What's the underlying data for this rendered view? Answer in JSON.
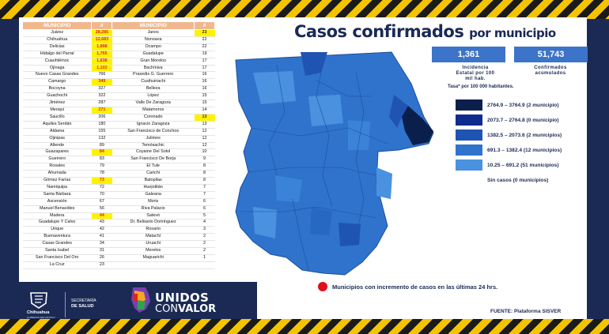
{
  "title": {
    "main": "Casos confirmados",
    "tail": "por municipio"
  },
  "incidence": {
    "value": "1,361",
    "label_1": "Incidencia",
    "label_2": "Estatal por 100",
    "label_3": "mil hab.",
    "note": "Tasa* por 100 000 habitantes."
  },
  "confirmed": {
    "value": "51,743",
    "label_1": "Confirmados",
    "label_2": "acumulados"
  },
  "legend": [
    {
      "label": "2764.9 – 3764.9 (2 municipio)",
      "color": "#0b1f4d"
    },
    {
      "label": "2073.7 – 2764.8 (0 municipio)",
      "color": "#0d2c8e"
    },
    {
      "label": "1382.5 – 2073.6 (2 municipios)",
      "color": "#1f54b3"
    },
    {
      "label": "691.3 – 1382.4 (12 municipios)",
      "color": "#2f73cc"
    },
    {
      "label": "10.25 – 691.2 (51 municipios)",
      "color": "#4a91e0"
    },
    {
      "label": "Sin casos (0 municipios)",
      "color": "#ffffff"
    }
  ],
  "increment_note": "Municipios con incremento de casos en las últimas 24 hrs.",
  "source": "FUENTE: Plataforma SISVER",
  "table": {
    "headers": [
      "MUNICIPIO",
      "#",
      "MUNICIPIO",
      "#"
    ],
    "rows": [
      [
        "Juárez",
        "28,285",
        "Janos",
        "23"
      ],
      [
        "Chihuahua",
        "12,683",
        "Nonoava",
        "22"
      ],
      [
        "Delicias",
        "1,898",
        "Ocampo",
        "22"
      ],
      [
        "Hidalgo del Parral",
        "1,765",
        "Guadalupe",
        "19"
      ],
      [
        "Cuauhtémoc",
        "1,638",
        "Gran Morelos",
        "17"
      ],
      [
        "Ojinaga",
        "1,102",
        "Bachíniva",
        "17"
      ],
      [
        "Nuevo Casas Grandes",
        "766",
        "Praxedis G. Guerrero",
        "16"
      ],
      [
        "Camargo",
        "349",
        "Cusihuiriachi",
        "16"
      ],
      [
        "Bocoyna",
        "327",
        "Belleza",
        "16"
      ],
      [
        "Guachochi",
        "322",
        "López",
        "15"
      ],
      [
        "Jiménez",
        "287",
        "Valle De Zaragoza",
        "15"
      ],
      [
        "Meoqui",
        "271",
        "Matamoros",
        "14"
      ],
      [
        "Saucillo",
        "206",
        "Coronado",
        "13"
      ],
      [
        "Aquiles Serdán",
        "180",
        "Ignacio Zaragoza",
        "13"
      ],
      [
        "Aldama",
        "155",
        "San Francisco de Conchos",
        "12"
      ],
      [
        "Ojinipas",
        "132",
        "Julimes",
        "12"
      ],
      [
        "Allende",
        "89",
        "Temósachic",
        "12"
      ],
      [
        "Guazapares",
        "84",
        "Coyame Del Sotol",
        "10"
      ],
      [
        "Guerrero",
        "83",
        "San Francisco De Borja",
        "9"
      ],
      [
        "Rosales",
        "79",
        "El Tule",
        "8"
      ],
      [
        "Ahumada",
        "78",
        "Carichí",
        "8"
      ],
      [
        "Gómez Farías",
        "73",
        "Batopilas",
        "8"
      ],
      [
        "Namiquipa",
        "72",
        "Huejotitán",
        "7"
      ],
      [
        "Santa Bárbara",
        "70",
        "Galeana",
        "7"
      ],
      [
        "Ascensión",
        "67",
        "Moris",
        "6"
      ],
      [
        "Manuel Benavides",
        "56",
        "Riva Palacio",
        "6"
      ],
      [
        "Madera",
        "44",
        "Satevó",
        "5"
      ],
      [
        "Guadalupe Y Calvo",
        "43",
        "Dr. Belisario Domínguez",
        "4"
      ],
      [
        "Urique",
        "42",
        "Rosario",
        "3"
      ],
      [
        "Buenaventura",
        "41",
        "Matachí",
        "2"
      ],
      [
        "Casas Grandes",
        "34",
        "Uruachi",
        "2"
      ],
      [
        "Santa Isabel",
        "31",
        "Morelos",
        "2"
      ],
      [
        "San Francisco Del Oro",
        "26",
        "Maguarichi",
        "1"
      ],
      [
        "La Cruz",
        "23",
        "",
        ""
      ]
    ],
    "highlight_left": [
      0,
      1,
      2,
      3,
      4,
      5,
      7,
      11,
      17,
      21,
      26
    ],
    "highlight_right": [
      0,
      12
    ]
  },
  "footer": {
    "chihuahua": "Chihuahua",
    "gobierno": "GOBIERNO DEL ESTADO",
    "secretaria_1": "SECRETARÍA",
    "secretaria_2": "DE SALUD",
    "unidos_1": "UNIDOS",
    "unidos_2a": "CON",
    "unidos_2b": "VALOR"
  }
}
